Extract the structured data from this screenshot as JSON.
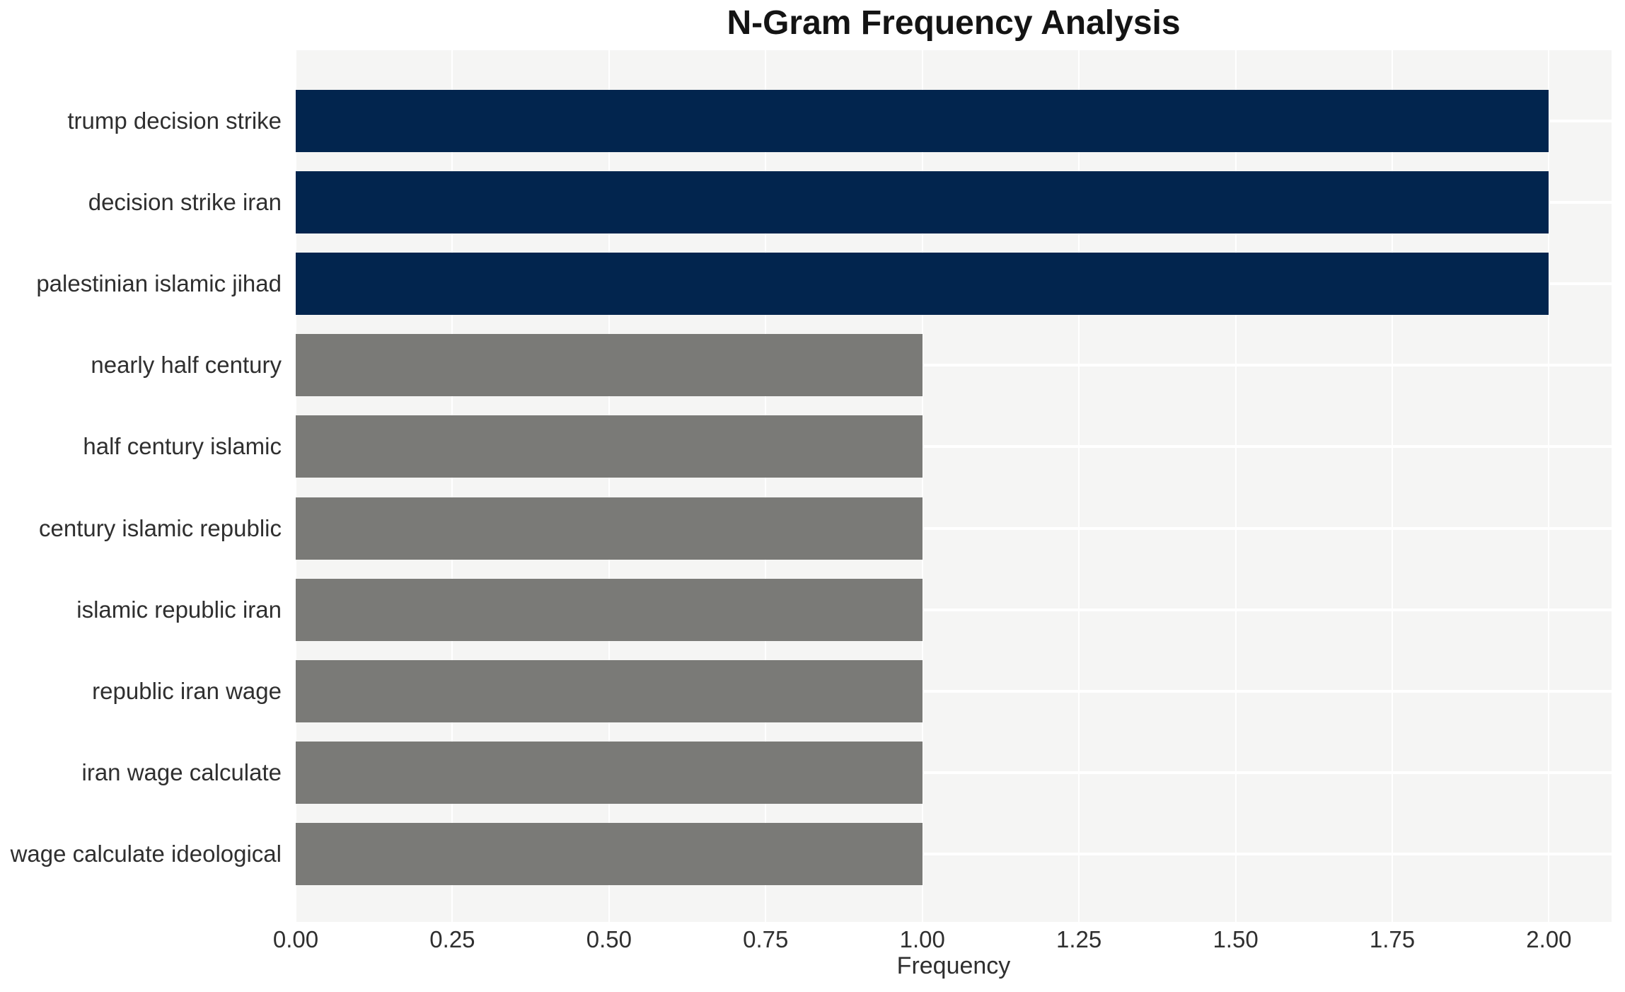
{
  "chart_data": {
    "type": "bar",
    "orientation": "horizontal",
    "title": "N-Gram Frequency Analysis",
    "xlabel": "Frequency",
    "ylabel": "",
    "categories": [
      "trump decision strike",
      "decision strike iran",
      "palestinian islamic jihad",
      "nearly half century",
      "half century islamic",
      "century islamic republic",
      "islamic republic iran",
      "republic iran wage",
      "iran wage calculate",
      "wage calculate ideological"
    ],
    "values": [
      2,
      2,
      2,
      1,
      1,
      1,
      1,
      1,
      1,
      1
    ],
    "bar_colors": [
      "#02254e",
      "#02254e",
      "#02254e",
      "#7a7a77",
      "#7a7a77",
      "#7a7a77",
      "#7a7a77",
      "#7a7a77",
      "#7a7a77",
      "#7a7a77"
    ],
    "palette": {
      "highlight": "#02254e",
      "muted": "#7a7a77",
      "panel_bg": "#f5f5f4",
      "gridline": "#ffffff",
      "text": "#2f2f2f",
      "title_text": "#141414"
    },
    "xticks": [
      "0.00",
      "0.25",
      "0.50",
      "0.75",
      "1.00",
      "1.25",
      "1.50",
      "1.75",
      "2.00"
    ],
    "xlim": [
      0,
      2.1
    ],
    "grid": {
      "vertical_gridlines": true,
      "horizontal_centerlines": true,
      "legend": "none"
    }
  }
}
